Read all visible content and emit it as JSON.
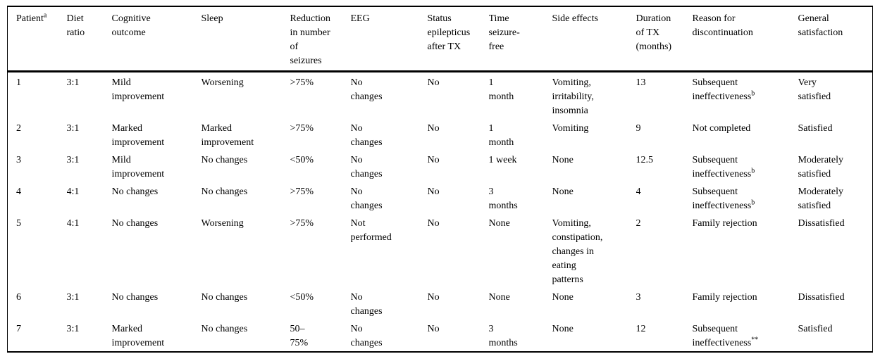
{
  "table": {
    "columns": [
      {
        "key": "patient",
        "label": "Patient",
        "sup": "a"
      },
      {
        "key": "diet_ratio",
        "label": "Diet\nratio"
      },
      {
        "key": "cognitive_outcome",
        "label": "Cognitive\noutcome"
      },
      {
        "key": "sleep",
        "label": "Sleep"
      },
      {
        "key": "seizure_reduction",
        "label": "Reduction\nin number\nof\nseizures"
      },
      {
        "key": "eeg",
        "label": "EEG"
      },
      {
        "key": "status_epilepticus",
        "label": "Status\nepilepticus\nafter TX"
      },
      {
        "key": "time_seizure_free",
        "label": "Time\nseizure-\nfree"
      },
      {
        "key": "side_effects",
        "label": "Side effects"
      },
      {
        "key": "duration_tx",
        "label": "Duration\nof TX\n(months)"
      },
      {
        "key": "reason_discontinuation",
        "label": "Reason for\ndiscontinuation"
      },
      {
        "key": "general_satisfaction",
        "label": "General\nsatisfaction"
      }
    ],
    "rows": [
      [
        {
          "text": "1"
        },
        {
          "text": "3:1"
        },
        {
          "text": "Mild\nimprovement"
        },
        {
          "text": "Worsening"
        },
        {
          "text": ">75%"
        },
        {
          "text": "No\nchanges"
        },
        {
          "text": "No"
        },
        {
          "text": "1\nmonth"
        },
        {
          "text": "Vomiting,\nirritability,\ninsomnia"
        },
        {
          "text": "13"
        },
        {
          "text": "Subsequent\nineffectiveness",
          "sup": "b"
        },
        {
          "text": "Very\nsatisfied"
        }
      ],
      [
        {
          "text": "2"
        },
        {
          "text": "3:1"
        },
        {
          "text": "Marked\nimprovement"
        },
        {
          "text": "Marked\nimprovement"
        },
        {
          "text": ">75%"
        },
        {
          "text": "No\nchanges"
        },
        {
          "text": "No"
        },
        {
          "text": "1\nmonth"
        },
        {
          "text": "Vomiting"
        },
        {
          "text": "9"
        },
        {
          "text": "Not completed"
        },
        {
          "text": "Satisfied"
        }
      ],
      [
        {
          "text": "3"
        },
        {
          "text": "3:1"
        },
        {
          "text": "Mild\nimprovement"
        },
        {
          "text": "No changes"
        },
        {
          "text": "<50%"
        },
        {
          "text": "No\nchanges"
        },
        {
          "text": "No"
        },
        {
          "text": "1 week"
        },
        {
          "text": "None"
        },
        {
          "text": "12.5"
        },
        {
          "text": "Subsequent\nineffectiveness",
          "sup": "b"
        },
        {
          "text": "Moderately\nsatisfied"
        }
      ],
      [
        {
          "text": "4"
        },
        {
          "text": "4:1"
        },
        {
          "text": "No changes"
        },
        {
          "text": "No changes"
        },
        {
          "text": ">75%"
        },
        {
          "text": "No\nchanges"
        },
        {
          "text": "No"
        },
        {
          "text": "3\nmonths"
        },
        {
          "text": "None"
        },
        {
          "text": "4"
        },
        {
          "text": "Subsequent\nineffectiveness",
          "sup": "b"
        },
        {
          "text": "Moderately\nsatisfied"
        }
      ],
      [
        {
          "text": "5"
        },
        {
          "text": "4:1"
        },
        {
          "text": "No changes"
        },
        {
          "text": "Worsening"
        },
        {
          "text": ">75%"
        },
        {
          "text": "Not\nperformed"
        },
        {
          "text": "No"
        },
        {
          "text": "None"
        },
        {
          "text": "Vomiting,\nconstipation,\nchanges in\neating\npatterns"
        },
        {
          "text": "2"
        },
        {
          "text": "Family rejection"
        },
        {
          "text": "Dissatisfied"
        }
      ],
      [
        {
          "text": "6"
        },
        {
          "text": "3:1"
        },
        {
          "text": "No changes"
        },
        {
          "text": "No changes"
        },
        {
          "text": "<50%"
        },
        {
          "text": "No\nchanges"
        },
        {
          "text": "No"
        },
        {
          "text": "None"
        },
        {
          "text": "None"
        },
        {
          "text": "3"
        },
        {
          "text": "Family rejection"
        },
        {
          "text": "Dissatisfied"
        }
      ],
      [
        {
          "text": "7"
        },
        {
          "text": "3:1"
        },
        {
          "text": "Marked\nimprovement"
        },
        {
          "text": "No changes"
        },
        {
          "text": "50–\n75%"
        },
        {
          "text": "No\nchanges"
        },
        {
          "text": "No"
        },
        {
          "text": "3\nmonths"
        },
        {
          "text": "None"
        },
        {
          "text": "12"
        },
        {
          "text": "Subsequent\nineffectiveness",
          "sup": "**"
        },
        {
          "text": "Satisfied"
        }
      ]
    ]
  }
}
